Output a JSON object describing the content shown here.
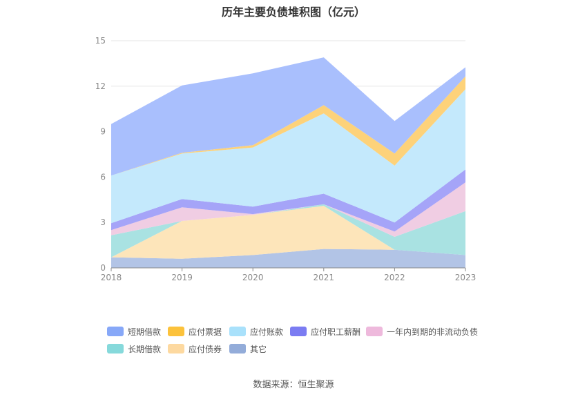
{
  "title": "历年主要负债堆积图（亿元）",
  "source": "数据来源：恒生聚源",
  "chart_data": {
    "type": "area",
    "stacked": true,
    "title": "历年主要负债堆积图（亿元）",
    "categories": [
      "2018",
      "2019",
      "2020",
      "2021",
      "2022",
      "2023"
    ],
    "ylim": [
      0,
      15
    ],
    "yticks": [
      0,
      3,
      6,
      9,
      12,
      15
    ],
    "grid": true,
    "legend_position": "bottom",
    "series": [
      {
        "name": "其它",
        "color": "#b2c4e6",
        "values": [
          0.7,
          0.6,
          0.85,
          1.25,
          1.2,
          0.85
        ]
      },
      {
        "name": "应付债券",
        "color": "#fde5ba",
        "values": [
          0.0,
          2.5,
          2.65,
          2.85,
          0.0,
          0.0
        ]
      },
      {
        "name": "长期借款",
        "color": "#a9e2e2",
        "values": [
          1.45,
          0.0,
          0.0,
          0.1,
          0.85,
          2.9
        ]
      },
      {
        "name": "一年内到期的非流动负债",
        "color": "#f0cde3",
        "values": [
          0.35,
          0.9,
          0.05,
          0.0,
          0.35,
          1.9
        ]
      },
      {
        "name": "应付职工薪酬",
        "color": "#a5a4f8",
        "values": [
          0.45,
          0.55,
          0.5,
          0.7,
          0.6,
          0.85
        ]
      },
      {
        "name": "应付账款",
        "color": "#c4e9fc",
        "values": [
          3.15,
          3.0,
          3.9,
          5.3,
          3.75,
          5.3
        ]
      },
      {
        "name": "应付票据",
        "color": "#fdd27a",
        "values": [
          0.0,
          0.05,
          0.15,
          0.55,
          0.8,
          0.85
        ]
      },
      {
        "name": "短期借款",
        "color": "#a9bffd",
        "values": [
          3.4,
          4.45,
          4.75,
          3.15,
          2.15,
          0.6
        ]
      }
    ]
  },
  "legend": [
    {
      "name": "短期借款",
      "color": "#87a8f8"
    },
    {
      "name": "应付票据",
      "color": "#fcc23b"
    },
    {
      "name": "应付账款",
      "color": "#a9e1fb"
    },
    {
      "name": "应付职工薪酬",
      "color": "#7b7cf2"
    },
    {
      "name": "一年内到期的非流动负债",
      "color": "#eeb9dc"
    },
    {
      "name": "长期借款",
      "color": "#86d9db"
    },
    {
      "name": "应付债券",
      "color": "#fdd9a0"
    },
    {
      "name": "其它",
      "color": "#93acd9"
    }
  ]
}
